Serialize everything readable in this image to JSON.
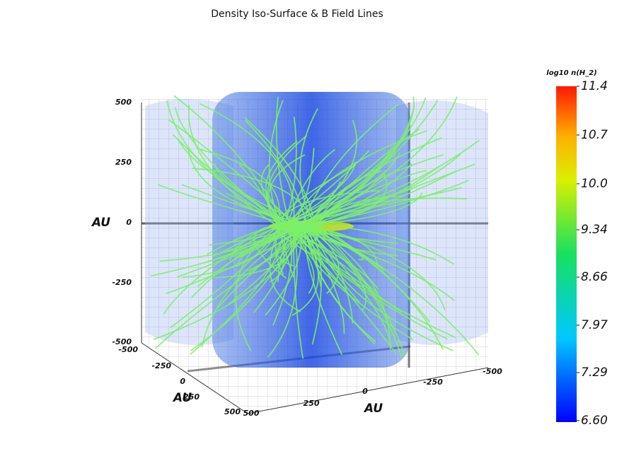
{
  "title": "Density Iso-Surface & B Field Lines",
  "vertical_axis": {
    "label": "AU",
    "ticks": [
      "500",
      "250",
      "0",
      "-250",
      "-500"
    ]
  },
  "depth_axis": {
    "label": "AU",
    "ticks": [
      "-500",
      "-250",
      "0",
      "250",
      "500"
    ]
  },
  "horizontal_axis": {
    "label": "AU",
    "ticks": [
      "500",
      "250",
      "0",
      "-250",
      "-500"
    ]
  },
  "colorbar": {
    "label": "log10 n(H_2)",
    "range": [
      6.6,
      11.4
    ],
    "ticks": [
      {
        "value": 11.4,
        "label": "11.4"
      },
      {
        "value": 10.7,
        "label": "10.7"
      },
      {
        "value": 10,
        "label": "10.0"
      },
      {
        "value": 9.34,
        "label": "9.34"
      },
      {
        "value": 8.66,
        "label": "8.66"
      },
      {
        "value": 7.97,
        "label": "7.97"
      },
      {
        "value": 7.29,
        "label": "7.29"
      },
      {
        "value": 6.6,
        "label": "6.60"
      }
    ]
  }
}
